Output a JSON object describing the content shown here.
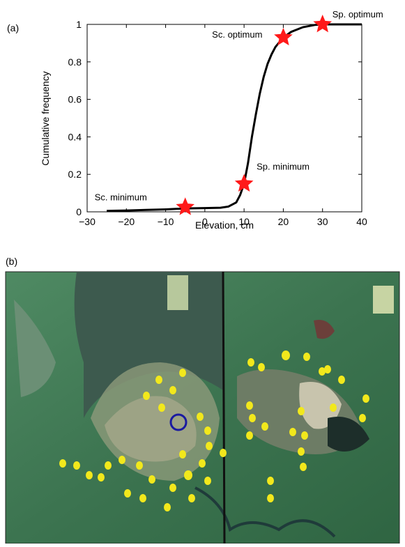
{
  "chart_data": {
    "type": "line",
    "panel_a": "(a)",
    "panel_b": "(b)",
    "xlabel": "Elevation, cm",
    "ylabel": "Cumulative frequency",
    "xlim": [
      -30,
      40
    ],
    "ylim": [
      0,
      1
    ],
    "xticks": [
      {
        "value": -30,
        "label": "−30"
      },
      {
        "value": -20,
        "label": "−20"
      },
      {
        "value": -10,
        "label": "−10"
      },
      0,
      10,
      20,
      30,
      40
    ],
    "yticks": [
      0,
      0.2,
      0.4,
      0.6,
      0.8,
      1
    ],
    "color": "#000000",
    "marker_color": "#ff1a1a",
    "line": {
      "x": [
        -25,
        -20,
        -15,
        -10,
        -5,
        0,
        4,
        6,
        8,
        9,
        10,
        11,
        12,
        13,
        14,
        15,
        16,
        17,
        18,
        20,
        22,
        25,
        28,
        30,
        35,
        40
      ],
      "y": [
        0.005,
        0.007,
        0.01,
        0.013,
        0.018,
        0.02,
        0.022,
        0.028,
        0.05,
        0.09,
        0.15,
        0.26,
        0.4,
        0.52,
        0.63,
        0.72,
        0.79,
        0.84,
        0.88,
        0.93,
        0.96,
        0.985,
        0.997,
        1,
        1,
        1
      ]
    },
    "points": {
      "x": [
        -5,
        10,
        20,
        30
      ],
      "y": [
        0.025,
        0.15,
        0.93,
        1
      ],
      "labels": [
        "Sc. minimum",
        "Sp. minimum",
        "Sc. optimum",
        "Sp. optimum"
      ]
    }
  }
}
